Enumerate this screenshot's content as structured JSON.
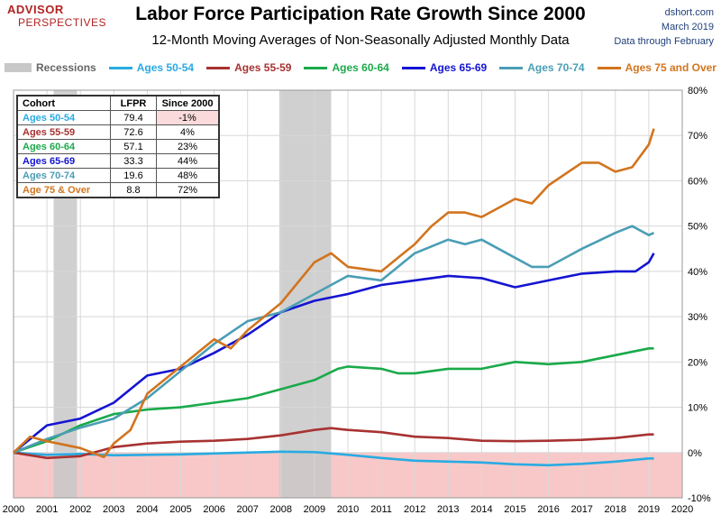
{
  "logo": {
    "top": "ADVISOR",
    "bottom": "PERSPECTIVES"
  },
  "header": {
    "title": "Labor Force Participation Rate Growth Since 2000",
    "subtitle": "12-Month Moving Averages of Non-Seasonally Adjusted Monthly Data"
  },
  "source": {
    "site": "dshort.com",
    "date": "March 2019",
    "note": "Data through February"
  },
  "legend": {
    "recessions": "Recessions",
    "items": [
      {
        "label": "Ages 50-54",
        "color": "#29abe2"
      },
      {
        "label": "Ages 55-59",
        "color": "#a83232"
      },
      {
        "label": "Ages 60-64",
        "color": "#1aaa4a"
      },
      {
        "label": "Ages 65-69",
        "color": "#1414d2"
      },
      {
        "label": "Ages 70-74",
        "color": "#4a9eb5"
      },
      {
        "label": "Ages 75 and Over",
        "color": "#d2741e"
      }
    ]
  },
  "table": {
    "headers": [
      "Cohort",
      "LFPR",
      "Since 2000"
    ],
    "rows": [
      {
        "cohort": "Ages 50-54",
        "lfpr": "79.4",
        "since": "-1%",
        "color": "#29abe2",
        "negative": true
      },
      {
        "cohort": "Ages 55-59",
        "lfpr": "72.6",
        "since": "4%",
        "color": "#a83232",
        "negative": false
      },
      {
        "cohort": "Ages 60-64",
        "lfpr": "57.1",
        "since": "23%",
        "color": "#1aaa4a",
        "negative": false
      },
      {
        "cohort": "Ages 65-69",
        "lfpr": "33.3",
        "since": "44%",
        "color": "#1414d2",
        "negative": false
      },
      {
        "cohort": "Ages 70-74",
        "lfpr": "19.6",
        "since": "48%",
        "color": "#4a9eb5",
        "negative": false
      },
      {
        "cohort": "Age 75 & Over",
        "lfpr": "8.8",
        "since": "72%",
        "color": "#d2741e",
        "negative": false
      }
    ]
  },
  "chart_data": {
    "type": "line",
    "title": "Labor Force Participation Rate Growth Since 2000",
    "subtitle": "12-Month Moving Averages of Non-Seasonally Adjusted Monthly Data",
    "xlim": [
      2000,
      2020
    ],
    "ylim": [
      -10,
      80
    ],
    "x_ticks": [
      "2000",
      "2001",
      "2002",
      "2003",
      "2004",
      "2005",
      "2006",
      "2007",
      "2008",
      "2009",
      "2010",
      "2011",
      "2012",
      "2013",
      "2014",
      "2015",
      "2016",
      "2017",
      "2018",
      "2019",
      "2020"
    ],
    "y_ticks": [
      "-10%",
      "0%",
      "10%",
      "20%",
      "30%",
      "40%",
      "50%",
      "60%",
      "70%",
      "80%"
    ],
    "negative_shading_color": "#f8c8c8",
    "grid": true,
    "legend_position": "top",
    "recessions": [
      [
        2001.2,
        2001.9
      ],
      [
        2007.95,
        2009.5
      ]
    ],
    "series": [
      {
        "name": "Ages 50-54",
        "color": "#29abe2",
        "points": [
          [
            2000,
            0
          ],
          [
            2001,
            -0.5
          ],
          [
            2002,
            -0.3
          ],
          [
            2003,
            -0.6
          ],
          [
            2004,
            -0.5
          ],
          [
            2005,
            -0.4
          ],
          [
            2006,
            -0.2
          ],
          [
            2007,
            0
          ],
          [
            2008,
            0.2
          ],
          [
            2009,
            0.1
          ],
          [
            2010,
            -0.5
          ],
          [
            2011,
            -1.2
          ],
          [
            2012,
            -1.8
          ],
          [
            2013,
            -2
          ],
          [
            2014,
            -2.2
          ],
          [
            2015,
            -2.6
          ],
          [
            2016,
            -2.8
          ],
          [
            2017,
            -2.5
          ],
          [
            2018,
            -2
          ],
          [
            2019,
            -1.3
          ],
          [
            2019.15,
            -1.3
          ]
        ]
      },
      {
        "name": "Ages 55-59",
        "color": "#a83232",
        "points": [
          [
            2000,
            0
          ],
          [
            2001,
            -1.2
          ],
          [
            2002,
            -0.8
          ],
          [
            2003,
            1.2
          ],
          [
            2004,
            2
          ],
          [
            2005,
            2.4
          ],
          [
            2006,
            2.6
          ],
          [
            2007,
            3
          ],
          [
            2008,
            3.8
          ],
          [
            2009,
            5
          ],
          [
            2009.5,
            5.4
          ],
          [
            2010,
            5
          ],
          [
            2011,
            4.5
          ],
          [
            2012,
            3.5
          ],
          [
            2013,
            3.2
          ],
          [
            2014,
            2.6
          ],
          [
            2015,
            2.5
          ],
          [
            2016,
            2.6
          ],
          [
            2017,
            2.8
          ],
          [
            2018,
            3.2
          ],
          [
            2019,
            4
          ],
          [
            2019.15,
            4
          ]
        ]
      },
      {
        "name": "Ages 60-64",
        "color": "#1aaa4a",
        "points": [
          [
            2000,
            0
          ],
          [
            2001,
            2.5
          ],
          [
            2002,
            6
          ],
          [
            2003,
            8.5
          ],
          [
            2004,
            9.5
          ],
          [
            2005,
            10
          ],
          [
            2006,
            11
          ],
          [
            2007,
            12
          ],
          [
            2008,
            14
          ],
          [
            2009,
            16
          ],
          [
            2009.7,
            18.5
          ],
          [
            2010,
            19
          ],
          [
            2011,
            18.5
          ],
          [
            2011.5,
            17.5
          ],
          [
            2012,
            17.5
          ],
          [
            2013,
            18.5
          ],
          [
            2014,
            18.5
          ],
          [
            2015,
            20
          ],
          [
            2016,
            19.5
          ],
          [
            2017,
            20
          ],
          [
            2018,
            21.5
          ],
          [
            2019,
            23
          ],
          [
            2019.15,
            23
          ]
        ]
      },
      {
        "name": "Ages 65-69",
        "color": "#1414d2",
        "points": [
          [
            2000,
            0
          ],
          [
            2001,
            6
          ],
          [
            2002,
            7.5
          ],
          [
            2003,
            11
          ],
          [
            2004,
            17
          ],
          [
            2005,
            18.5
          ],
          [
            2006,
            22
          ],
          [
            2007,
            26
          ],
          [
            2008,
            31
          ],
          [
            2009,
            33.5
          ],
          [
            2010,
            35
          ],
          [
            2011,
            37
          ],
          [
            2012,
            38
          ],
          [
            2013,
            39
          ],
          [
            2014,
            38.5
          ],
          [
            2015,
            36.5
          ],
          [
            2016,
            38
          ],
          [
            2017,
            39.5
          ],
          [
            2018,
            40
          ],
          [
            2018.6,
            40
          ],
          [
            2019,
            42
          ],
          [
            2019.15,
            44
          ]
        ]
      },
      {
        "name": "Ages 70-74",
        "color": "#4a9eb5",
        "points": [
          [
            2000,
            0
          ],
          [
            2001,
            3
          ],
          [
            2002,
            5.5
          ],
          [
            2003,
            7.5
          ],
          [
            2004,
            12
          ],
          [
            2005,
            18
          ],
          [
            2006,
            24
          ],
          [
            2007,
            29
          ],
          [
            2008,
            31
          ],
          [
            2009,
            35
          ],
          [
            2010,
            39
          ],
          [
            2011,
            38
          ],
          [
            2012,
            44
          ],
          [
            2013,
            47
          ],
          [
            2013.5,
            46
          ],
          [
            2014,
            47
          ],
          [
            2015,
            43
          ],
          [
            2015.5,
            41
          ],
          [
            2016,
            41
          ],
          [
            2017,
            45
          ],
          [
            2018,
            48.5
          ],
          [
            2018.5,
            50
          ],
          [
            2019,
            48
          ],
          [
            2019.15,
            48.5
          ]
        ]
      },
      {
        "name": "Ages 75 and Over",
        "color": "#d2741e",
        "points": [
          [
            2000,
            0
          ],
          [
            2000.5,
            3.5
          ],
          [
            2001,
            2.5
          ],
          [
            2002,
            1
          ],
          [
            2002.7,
            -1
          ],
          [
            2003,
            2
          ],
          [
            2003.5,
            5
          ],
          [
            2004,
            13
          ],
          [
            2005,
            19
          ],
          [
            2006,
            25
          ],
          [
            2006.5,
            23
          ],
          [
            2007,
            27
          ],
          [
            2008,
            33
          ],
          [
            2009,
            42
          ],
          [
            2009.5,
            44
          ],
          [
            2010,
            41
          ],
          [
            2011,
            40
          ],
          [
            2011.5,
            43
          ],
          [
            2012,
            46
          ],
          [
            2012.5,
            50
          ],
          [
            2013,
            53
          ],
          [
            2013.5,
            53
          ],
          [
            2014,
            52
          ],
          [
            2014.5,
            54
          ],
          [
            2015,
            56
          ],
          [
            2015.5,
            55
          ],
          [
            2016,
            59
          ],
          [
            2017,
            64
          ],
          [
            2017.5,
            64
          ],
          [
            2018,
            62
          ],
          [
            2018.5,
            63
          ],
          [
            2019,
            68
          ],
          [
            2019.15,
            71.5
          ]
        ]
      }
    ]
  }
}
